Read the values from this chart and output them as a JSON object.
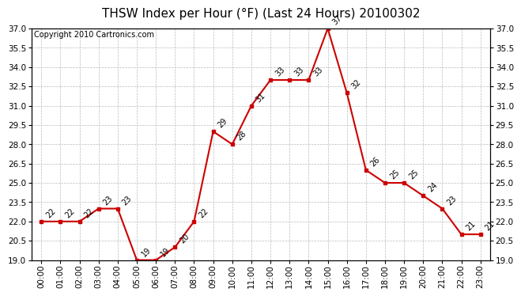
{
  "title": "THSW Index per Hour (°F) (Last 24 Hours) 20100302",
  "copyright": "Copyright 2010 Cartronics.com",
  "hours": [
    "00:00",
    "01:00",
    "02:00",
    "03:00",
    "04:00",
    "05:00",
    "06:00",
    "07:00",
    "08:00",
    "09:00",
    "10:00",
    "11:00",
    "12:00",
    "13:00",
    "14:00",
    "15:00",
    "16:00",
    "17:00",
    "18:00",
    "19:00",
    "20:00",
    "21:00",
    "22:00",
    "23:00"
  ],
  "values": [
    22,
    22,
    22,
    23,
    23,
    19,
    19,
    20,
    22,
    29,
    28,
    31,
    33,
    33,
    33,
    37,
    32,
    26,
    25,
    25,
    24,
    23,
    21,
    21
  ],
  "ylim": [
    19.0,
    37.0
  ],
  "yticks": [
    19.0,
    20.5,
    22.0,
    23.5,
    25.0,
    26.5,
    28.0,
    29.5,
    31.0,
    32.5,
    34.0,
    35.5,
    37.0
  ],
  "line_color": "#cc0000",
  "marker_color": "#cc0000",
  "grid_color": "#bbbbbb",
  "background_color": "#ffffff",
  "title_fontsize": 11,
  "label_fontsize": 7,
  "copyright_fontsize": 7,
  "tick_fontsize": 7.5
}
